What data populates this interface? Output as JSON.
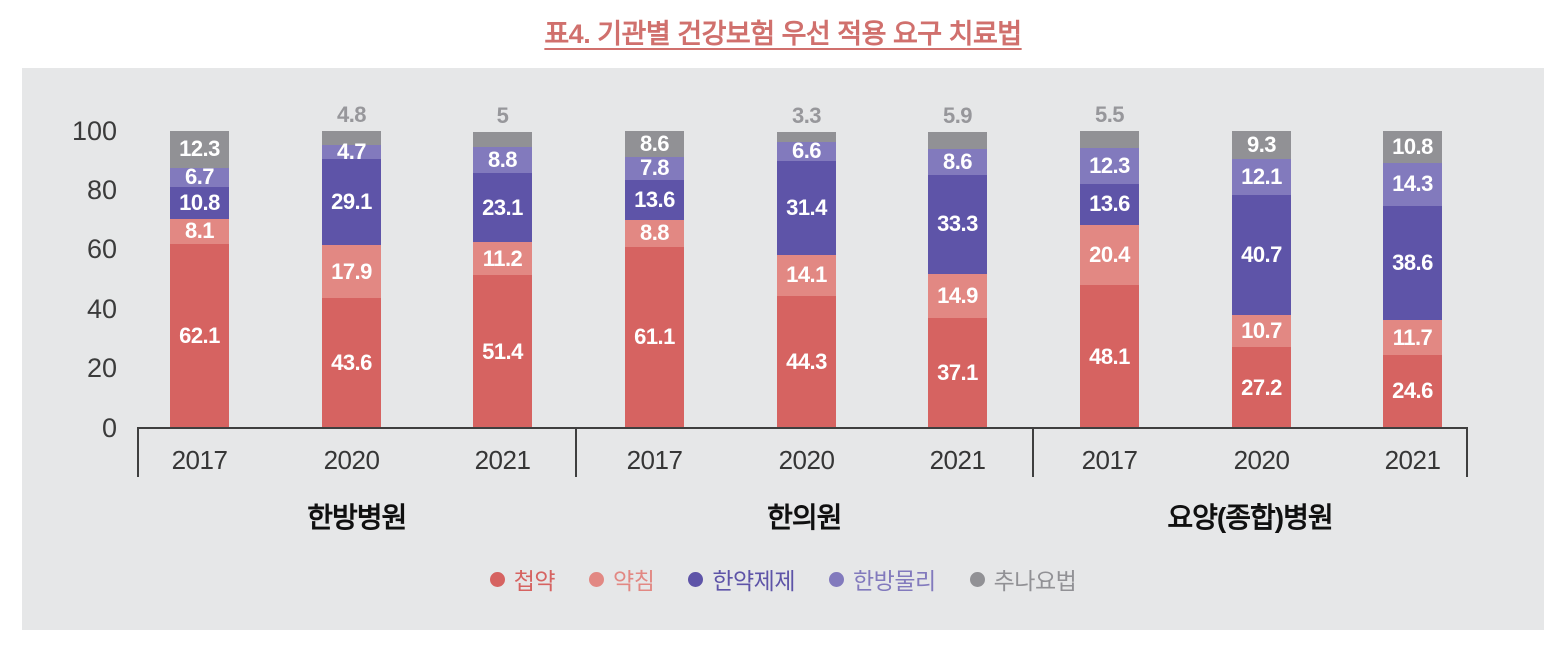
{
  "title": "표4. 기관별 건강보험 우선 적용 요구 치료법",
  "colors": {
    "panel_bg": "#e6e7e8",
    "title": "#d0706d",
    "axis": "#3f3f3f",
    "ytick_label": "#3b3b3b",
    "year_label": "#363636",
    "group_label": "#101010",
    "bar_value_label": "#ffffff",
    "above_value_label": "#97979b"
  },
  "chart_data": {
    "type": "bar",
    "stacked": true,
    "ylim": [
      0,
      100
    ],
    "yticks": [
      0,
      20,
      40,
      60,
      80,
      100
    ],
    "grid": false,
    "legend_position": "bottom",
    "small_segment_label_above_threshold": 6,
    "series": [
      {
        "name": "첩약",
        "color": "#d66361"
      },
      {
        "name": "약침",
        "color": "#e28883"
      },
      {
        "name": "한약제제",
        "color": "#5e54a8"
      },
      {
        "name": "한방물리",
        "color": "#827abd"
      },
      {
        "name": "추나요법",
        "color": "#919195"
      }
    ],
    "groups": [
      {
        "label": "한방병원",
        "bars": [
          {
            "year": "2017",
            "values": [
              62.1,
              8.1,
              10.8,
              6.7,
              12.3
            ]
          },
          {
            "year": "2020",
            "values": [
              43.6,
              17.9,
              29.1,
              4.7,
              4.8
            ]
          },
          {
            "year": "2021",
            "values": [
              51.4,
              11.2,
              23.1,
              8.8,
              5
            ]
          }
        ]
      },
      {
        "label": "한의원",
        "bars": [
          {
            "year": "2017",
            "values": [
              61.1,
              8.8,
              13.6,
              7.8,
              8.6
            ]
          },
          {
            "year": "2020",
            "values": [
              44.3,
              14.1,
              31.4,
              6.6,
              3.3
            ]
          },
          {
            "year": "2021",
            "values": [
              37.1,
              14.9,
              33.3,
              8.6,
              5.9
            ]
          }
        ]
      },
      {
        "label": "요양(종합)병원",
        "bars": [
          {
            "year": "2017",
            "values": [
              48.1,
              20.4,
              13.6,
              12.3,
              5.5
            ]
          },
          {
            "year": "2020",
            "values": [
              27.2,
              10.7,
              40.7,
              12.1,
              9.3
            ]
          },
          {
            "year": "2021",
            "values": [
              24.6,
              11.7,
              38.6,
              14.3,
              10.8
            ]
          }
        ]
      }
    ]
  }
}
